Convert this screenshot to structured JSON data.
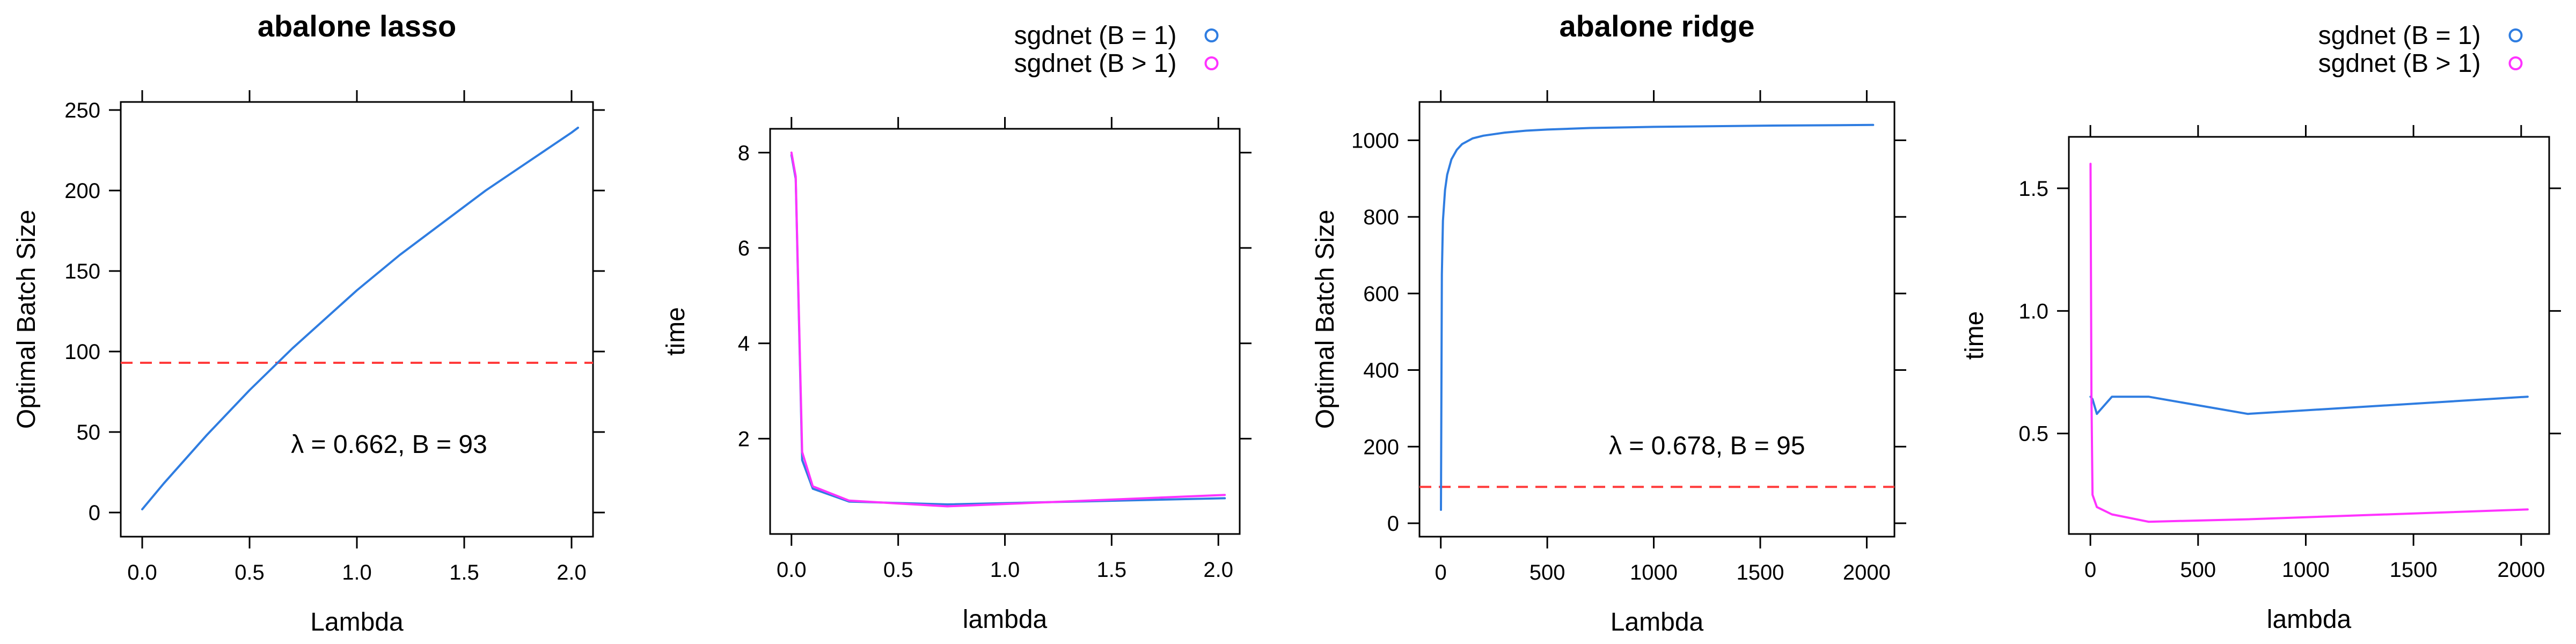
{
  "chart_data": [
    {
      "type": "line",
      "title": "abalone lasso",
      "xlabel": "Lambda",
      "ylabel": "Optimal Batch Size",
      "xlim": [
        -0.1,
        2.1
      ],
      "ylim": [
        -15,
        255
      ],
      "xticks": [
        0.0,
        0.5,
        1.0,
        1.5,
        2.0
      ],
      "xtick_labels": [
        "0.0",
        "0.5",
        "1.0",
        "1.5",
        "2.0"
      ],
      "yticks": [
        0,
        50,
        100,
        150,
        200,
        250
      ],
      "ytick_labels": [
        "0",
        "50",
        "100",
        "150",
        "200",
        "250"
      ],
      "series": [
        {
          "color": "#2f7de1",
          "x": [
            0.0,
            0.1,
            0.2,
            0.3,
            0.4,
            0.5,
            0.6,
            0.7,
            0.8,
            0.9,
            1.0,
            1.1,
            1.2,
            1.3,
            1.4,
            1.5,
            1.6,
            1.7,
            1.8,
            1.9,
            2.0,
            2.03
          ],
          "y": [
            2,
            18,
            33,
            48,
            62,
            76,
            89,
            102,
            114,
            126,
            138,
            149,
            160,
            170,
            180,
            190,
            200,
            209,
            218,
            227,
            236,
            239
          ]
        }
      ],
      "hline": {
        "y": 93,
        "color": "#ff3b3b",
        "style": "dashed"
      },
      "annotation": {
        "text": "λ = 0.662, B = 93",
        "x": 1.15,
        "y": 37
      },
      "legend": "none",
      "grid": false
    },
    {
      "type": "line",
      "title": "",
      "xlabel": "lambda",
      "ylabel": "time",
      "xlim": [
        -0.1,
        2.1
      ],
      "ylim": [
        0.0,
        8.5
      ],
      "xticks": [
        0.0,
        0.5,
        1.0,
        1.5,
        2.0
      ],
      "xtick_labels": [
        "0.0",
        "0.5",
        "1.0",
        "1.5",
        "2.0"
      ],
      "yticks": [
        2,
        4,
        6,
        8
      ],
      "ytick_labels": [
        "2",
        "4",
        "6",
        "8"
      ],
      "series": [
        {
          "name": "sgdnet (B = 1)",
          "color": "#2f7de1",
          "x": [
            0.0,
            0.02,
            0.05,
            0.1,
            0.27,
            0.73,
            2.03
          ],
          "y": [
            7.95,
            7.45,
            1.55,
            0.95,
            0.68,
            0.62,
            0.75
          ]
        },
        {
          "name": "sgdnet (B > 1)",
          "color": "#ff33ff",
          "x": [
            0.0,
            0.02,
            0.05,
            0.1,
            0.27,
            0.73,
            2.03
          ],
          "y": [
            8.0,
            7.5,
            1.72,
            1.0,
            0.7,
            0.58,
            0.82
          ]
        }
      ],
      "legend": "top",
      "grid": false
    },
    {
      "type": "line",
      "title": "abalone ridge",
      "xlabel": "Lambda",
      "ylabel": "Optimal Batch Size",
      "xlim": [
        -100,
        2130
      ],
      "ylim": [
        -35,
        1100
      ],
      "xticks": [
        0,
        500,
        1000,
        1500,
        2000
      ],
      "xtick_labels": [
        "0",
        "500",
        "1000",
        "1500",
        "2000"
      ],
      "yticks": [
        0,
        200,
        400,
        600,
        800,
        1000
      ],
      "ytick_labels": [
        "0",
        "200",
        "400",
        "600",
        "800",
        "1000"
      ],
      "series": [
        {
          "color": "#2f7de1",
          "x": [
            0.68,
            5,
            10,
            20,
            30,
            50,
            75,
            100,
            150,
            200,
            300,
            400,
            500,
            700,
            1000,
            1500,
            2030
          ],
          "y": [
            35,
            650,
            790,
            870,
            910,
            950,
            975,
            990,
            1005,
            1012,
            1020,
            1025,
            1028,
            1032,
            1035,
            1038,
            1040
          ]
        }
      ],
      "hline": {
        "y": 95,
        "color": "#ff3b3b",
        "style": "dashed"
      },
      "annotation": {
        "text": "λ = 0.678, B = 95",
        "x": 1250,
        "y": 180
      },
      "legend": "none",
      "grid": false
    },
    {
      "type": "line",
      "title": "",
      "xlabel": "lambda",
      "ylabel": "time",
      "xlim": [
        -100,
        2130
      ],
      "ylim": [
        0.09,
        1.71
      ],
      "xticks": [
        0,
        500,
        1000,
        1500,
        2000
      ],
      "xtick_labels": [
        "0",
        "500",
        "1000",
        "1500",
        "2000"
      ],
      "yticks": [
        0.5,
        1.0,
        1.5
      ],
      "ytick_labels": [
        "0.5",
        "1.0",
        "1.5"
      ],
      "series": [
        {
          "name": "sgdnet (B = 1)",
          "color": "#2f7de1",
          "x": [
            0.68,
            10,
            30,
            50,
            100,
            270,
            730,
            2030
          ],
          "y": [
            0.65,
            0.64,
            0.58,
            0.6,
            0.65,
            0.65,
            0.58,
            0.65
          ]
        },
        {
          "name": "sgdnet (B > 1)",
          "color": "#ff33ff",
          "x": [
            0.68,
            5,
            10,
            30,
            100,
            270,
            730,
            2030
          ],
          "y": [
            1.6,
            0.65,
            0.25,
            0.2,
            0.17,
            0.14,
            0.15,
            0.19
          ]
        }
      ],
      "legend": "top",
      "grid": false
    }
  ]
}
